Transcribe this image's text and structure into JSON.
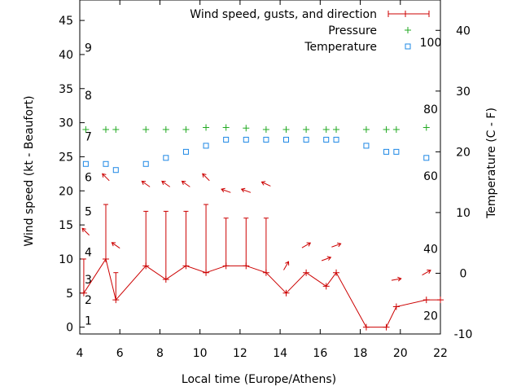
{
  "chart_data": {
    "type": "line",
    "xlabel": "Local time (Europe/Athens)",
    "ylabel_left": "Wind speed (kt - Beaufort)",
    "ylabel_right": "Temperature (C - F)",
    "xlim": [
      4,
      22
    ],
    "ylim_left": [
      -1,
      48
    ],
    "ylim_right_celsius": [
      -10,
      45
    ],
    "x_ticks": [
      4,
      6,
      8,
      10,
      12,
      14,
      16,
      18,
      20,
      22
    ],
    "left_ticks": [
      0,
      5,
      10,
      15,
      20,
      25,
      30,
      35,
      40,
      45
    ],
    "right_ticks_celsius": [
      -10,
      0,
      10,
      20,
      30,
      40
    ],
    "beaufort_labels": [
      {
        "label": "1",
        "kt": 1
      },
      {
        "label": "2",
        "kt": 4
      },
      {
        "label": "3",
        "kt": 7
      },
      {
        "label": "4",
        "kt": 11
      },
      {
        "label": "5",
        "kt": 17
      },
      {
        "label": "6",
        "kt": 22
      },
      {
        "label": "7",
        "kt": 28
      },
      {
        "label": "8",
        "kt": 34
      },
      {
        "label": "9",
        "kt": 41
      }
    ],
    "fahrenheit_labels": [
      {
        "label": "20",
        "celsius": -7
      },
      {
        "label": "40",
        "celsius": 4
      },
      {
        "label": "60",
        "celsius": 16
      },
      {
        "label": "80",
        "celsius": 27
      },
      {
        "label": "100",
        "celsius": 38
      }
    ],
    "legend": {
      "position": "top-right",
      "entries": [
        "Wind speed, gusts, and direction",
        "Pressure",
        "Temperature"
      ]
    },
    "colors": {
      "wind": "#cc0000",
      "pressure": "#22aa22",
      "temperature": "#1e88e5",
      "axis": "#000000"
    },
    "wind": {
      "x": [
        4.2,
        5.3,
        5.8,
        7.3,
        8.3,
        9.3,
        10.3,
        11.3,
        12.3,
        13.3,
        14.3,
        15.3,
        16.3,
        16.8,
        18.3,
        19.3,
        19.8,
        21.3,
        22.0
      ],
      "speed": [
        5,
        10,
        4,
        9,
        7,
        9,
        8,
        9,
        9,
        8,
        5,
        8,
        6,
        8,
        0,
        0,
        3,
        4,
        4
      ],
      "gust": [
        10,
        18,
        8,
        17,
        17,
        17,
        18,
        16,
        16,
        16,
        null,
        null,
        null,
        null,
        null,
        null,
        null,
        null,
        null
      ]
    },
    "wind_arrows": [
      {
        "x": 4.3,
        "y": 14,
        "dir": 135
      },
      {
        "x": 5.3,
        "y": 22,
        "dir": 135
      },
      {
        "x": 5.8,
        "y": 12,
        "dir": 125
      },
      {
        "x": 7.3,
        "y": 21,
        "dir": 125
      },
      {
        "x": 8.3,
        "y": 21,
        "dir": 125
      },
      {
        "x": 9.3,
        "y": 21,
        "dir": 125
      },
      {
        "x": 10.3,
        "y": 22,
        "dir": 135
      },
      {
        "x": 11.3,
        "y": 20,
        "dir": 110
      },
      {
        "x": 12.3,
        "y": 20,
        "dir": 110
      },
      {
        "x": 13.3,
        "y": 21,
        "dir": 115
      },
      {
        "x": 14.3,
        "y": 9,
        "dir": 210
      },
      {
        "x": 15.3,
        "y": 12,
        "dir": 240
      },
      {
        "x": 16.3,
        "y": 10,
        "dir": 250
      },
      {
        "x": 16.8,
        "y": 12,
        "dir": 250
      },
      {
        "x": 19.8,
        "y": 7,
        "dir": 260
      },
      {
        "x": 21.3,
        "y": 8,
        "dir": 240
      }
    ],
    "pressure": {
      "x": [
        4.3,
        5.3,
        5.8,
        7.3,
        8.3,
        9.3,
        10.3,
        11.3,
        12.3,
        13.3,
        14.3,
        15.3,
        16.3,
        16.8,
        18.3,
        19.3,
        19.8,
        21.3
      ],
      "y": [
        29,
        29,
        29,
        29,
        29,
        29,
        29.3,
        29.3,
        29.2,
        29,
        29,
        29,
        29,
        29,
        29,
        29,
        29,
        29.3
      ]
    },
    "temperature": {
      "x": [
        4.3,
        5.3,
        5.8,
        7.3,
        8.3,
        9.3,
        10.3,
        11.3,
        12.3,
        13.3,
        14.3,
        15.3,
        16.3,
        16.8,
        18.3,
        19.3,
        19.8,
        21.3
      ],
      "celsius": [
        18,
        18,
        17,
        18,
        19,
        20,
        21,
        22,
        22,
        22,
        22,
        22,
        22,
        22,
        21,
        20,
        20,
        19
      ]
    }
  }
}
